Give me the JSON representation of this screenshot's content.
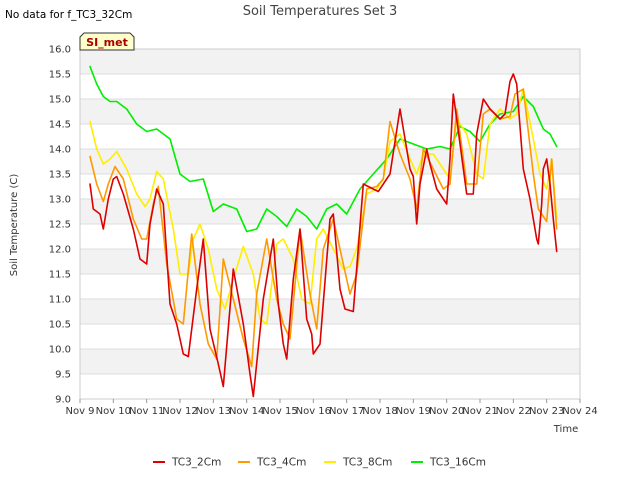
{
  "chart_data": {
    "type": "line",
    "title": "Soil Temperatures Set 3",
    "no_data_note": "No data for f_TC3_32Cm",
    "badge_label": "SI_met",
    "xlabel": "Time",
    "ylabel": "Soil Temperature (C)",
    "ylim": [
      9.0,
      16.0
    ],
    "xlim": [
      9,
      24
    ],
    "y_ticks": [
      9.0,
      9.5,
      10.0,
      10.5,
      11.0,
      11.5,
      12.0,
      12.5,
      13.0,
      13.5,
      14.0,
      14.5,
      15.0,
      15.5,
      16.0
    ],
    "y_tick_labels": [
      "9.0",
      "9.5",
      "10.0",
      "10.5",
      "11.0",
      "11.5",
      "12.0",
      "12.5",
      "13.0",
      "13.5",
      "14.0",
      "14.5",
      "15.0",
      "15.5",
      "16.0"
    ],
    "x_ticks": [
      9,
      10,
      11,
      12,
      13,
      14,
      15,
      16,
      17,
      18,
      19,
      20,
      21,
      22,
      23,
      24
    ],
    "x_tick_labels": [
      "Nov 9",
      "Nov 10",
      "Nov 11",
      "Nov 12",
      "Nov 13",
      "Nov 14",
      "Nov 15",
      "Nov 16",
      "Nov 17",
      "Nov 18",
      "Nov 19",
      "Nov 20",
      "Nov 21",
      "Nov 22",
      "Nov 23",
      "Nov 24"
    ],
    "series": [
      {
        "name": "TC3_2Cm",
        "color": "#dd0000",
        "x": [
          9.3,
          9.4,
          9.6,
          9.7,
          9.85,
          10.0,
          10.1,
          10.3,
          10.6,
          10.8,
          11.0,
          11.1,
          11.3,
          11.5,
          11.7,
          11.9,
          12.1,
          12.25,
          12.5,
          12.7,
          12.9,
          13.15,
          13.3,
          13.6,
          13.9,
          14.1,
          14.2,
          14.5,
          14.8,
          14.95,
          15.1,
          15.2,
          15.4,
          15.6,
          15.8,
          15.95,
          16.0,
          16.2,
          16.5,
          16.6,
          16.8,
          16.95,
          17.2,
          17.5,
          17.8,
          17.95,
          18.1,
          18.3,
          18.6,
          18.8,
          18.9,
          19.0,
          19.1,
          19.2,
          19.4,
          19.5,
          19.7,
          19.9,
          20.0,
          20.1,
          20.2,
          20.3,
          20.6,
          20.8,
          20.9,
          21.1,
          21.3,
          21.6,
          21.75,
          21.9,
          22.0,
          22.1,
          22.3,
          22.5,
          22.6,
          22.7,
          22.75,
          22.85,
          22.9,
          23.0,
          23.1,
          23.2,
          23.3
        ],
        "y": [
          13.3,
          12.8,
          12.7,
          12.4,
          13.0,
          13.4,
          13.45,
          13.1,
          12.4,
          11.8,
          11.7,
          12.5,
          13.2,
          12.9,
          10.9,
          10.5,
          9.9,
          9.85,
          11.2,
          12.2,
          10.4,
          9.7,
          9.25,
          11.6,
          10.5,
          9.5,
          9.05,
          11.0,
          12.2,
          10.9,
          10.1,
          9.8,
          11.4,
          12.4,
          10.6,
          10.3,
          9.9,
          10.1,
          12.6,
          12.7,
          11.2,
          10.8,
          10.75,
          13.3,
          13.2,
          13.15,
          13.3,
          13.5,
          14.8,
          14.0,
          13.6,
          13.45,
          12.5,
          13.3,
          14.0,
          13.7,
          13.2,
          13.0,
          12.9,
          13.8,
          15.1,
          14.6,
          13.1,
          13.1,
          14.3,
          15.0,
          14.8,
          14.6,
          14.7,
          15.35,
          15.5,
          15.3,
          13.6,
          13.0,
          12.6,
          12.2,
          12.1,
          12.9,
          13.6,
          13.8,
          13.3,
          12.6,
          11.95
        ]
      },
      {
        "name": "TC3_4Cm",
        "color": "#ff9900",
        "x": [
          9.3,
          9.5,
          9.7,
          9.85,
          10.05,
          10.3,
          10.6,
          10.85,
          11.0,
          11.2,
          11.35,
          11.6,
          11.9,
          12.1,
          12.35,
          12.6,
          12.85,
          13.1,
          13.3,
          13.6,
          13.9,
          14.15,
          14.3,
          14.6,
          14.9,
          15.1,
          15.3,
          15.6,
          15.9,
          16.1,
          16.3,
          16.6,
          16.9,
          17.1,
          17.3,
          17.6,
          17.9,
          18.1,
          18.3,
          18.6,
          18.9,
          19.1,
          19.3,
          19.6,
          19.9,
          20.1,
          20.3,
          20.6,
          20.9,
          21.1,
          21.3,
          21.6,
          21.9,
          22.05,
          22.3,
          22.6,
          22.75,
          23.0,
          23.15,
          23.3
        ],
        "y": [
          13.85,
          13.3,
          12.95,
          13.3,
          13.65,
          13.4,
          12.6,
          12.2,
          12.2,
          12.9,
          13.25,
          11.7,
          10.6,
          10.5,
          12.3,
          10.9,
          10.1,
          9.8,
          11.8,
          11.0,
          10.2,
          9.65,
          11.1,
          12.2,
          11.0,
          10.5,
          10.2,
          12.4,
          11.1,
          10.4,
          12.0,
          12.6,
          11.7,
          11.1,
          11.5,
          13.2,
          13.25,
          13.4,
          14.55,
          13.9,
          13.4,
          12.8,
          14.0,
          13.6,
          13.2,
          13.3,
          14.8,
          13.3,
          13.3,
          14.7,
          14.8,
          14.6,
          14.65,
          15.1,
          15.2,
          13.5,
          12.8,
          12.55,
          13.8,
          12.4
        ]
      },
      {
        "name": "TC3_8Cm",
        "color": "#ffee00",
        "x": [
          9.3,
          9.5,
          9.7,
          9.9,
          10.1,
          10.4,
          10.7,
          10.95,
          11.1,
          11.3,
          11.5,
          11.8,
          12.0,
          12.25,
          12.4,
          12.6,
          12.85,
          13.1,
          13.35,
          13.6,
          13.9,
          14.2,
          14.4,
          14.6,
          14.9,
          15.1,
          15.4,
          15.65,
          15.9,
          16.1,
          16.3,
          16.6,
          16.9,
          17.1,
          17.3,
          17.6,
          17.9,
          18.1,
          18.3,
          18.6,
          18.9,
          19.1,
          19.3,
          19.6,
          19.9,
          20.1,
          20.3,
          20.6,
          20.9,
          21.1,
          21.3,
          21.6,
          21.9,
          22.1,
          22.3,
          22.6,
          22.8,
          23.0,
          23.15,
          23.3
        ],
        "y": [
          14.55,
          14.0,
          13.7,
          13.8,
          13.95,
          13.6,
          13.1,
          12.85,
          13.0,
          13.55,
          13.4,
          12.4,
          11.5,
          11.5,
          12.2,
          12.5,
          12.0,
          11.2,
          10.8,
          11.4,
          12.05,
          11.5,
          10.6,
          10.5,
          12.1,
          12.2,
          11.8,
          11.0,
          10.9,
          12.2,
          12.4,
          12.0,
          11.6,
          11.65,
          12.0,
          13.1,
          13.2,
          13.4,
          14.15,
          14.3,
          13.8,
          13.5,
          13.9,
          13.9,
          13.6,
          13.4,
          14.6,
          14.3,
          13.5,
          13.4,
          14.5,
          14.8,
          14.6,
          14.7,
          15.2,
          14.2,
          13.5,
          13.2,
          13.8,
          12.6
        ]
      },
      {
        "name": "TC3_16Cm",
        "color": "#00ee00",
        "x": [
          9.3,
          9.5,
          9.7,
          9.9,
          10.1,
          10.4,
          10.7,
          11.0,
          11.3,
          11.7,
          12.0,
          12.3,
          12.7,
          13.0,
          13.3,
          13.7,
          14.0,
          14.3,
          14.6,
          14.9,
          15.2,
          15.5,
          15.8,
          16.1,
          16.4,
          16.7,
          17.0,
          17.4,
          17.8,
          18.2,
          18.6,
          19.0,
          19.4,
          19.8,
          20.1,
          20.4,
          20.7,
          21.0,
          21.3,
          21.6,
          22.0,
          22.3,
          22.6,
          22.9,
          23.1,
          23.3
        ],
        "y": [
          15.65,
          15.3,
          15.05,
          14.95,
          14.95,
          14.8,
          14.5,
          14.35,
          14.4,
          14.2,
          13.5,
          13.35,
          13.4,
          12.75,
          12.9,
          12.8,
          12.35,
          12.4,
          12.8,
          12.65,
          12.45,
          12.8,
          12.65,
          12.4,
          12.8,
          12.9,
          12.7,
          13.2,
          13.5,
          13.8,
          14.2,
          14.1,
          14.0,
          14.05,
          14.0,
          14.45,
          14.35,
          14.15,
          14.5,
          14.7,
          14.75,
          15.05,
          14.85,
          14.4,
          14.3,
          14.05
        ]
      }
    ]
  }
}
